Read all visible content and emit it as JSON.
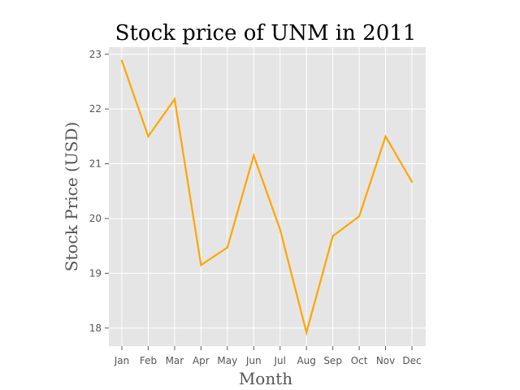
{
  "chart_data": {
    "type": "line",
    "title": "Stock price of UNM in 2011",
    "xlabel": "Month",
    "ylabel": "Stock Price (USD)",
    "categories": [
      "Jan",
      "Feb",
      "Mar",
      "Apr",
      "May",
      "Jun",
      "Jul",
      "Aug",
      "Sep",
      "Oct",
      "Nov",
      "Dec"
    ],
    "series": [
      {
        "values": [
          22.88,
          21.5,
          22.18,
          19.15,
          19.47,
          21.15,
          19.8,
          17.92,
          19.68,
          20.04,
          21.5,
          20.67
        ]
      }
    ],
    "yticks": [
      18,
      19,
      20,
      21,
      22,
      23
    ],
    "ylim": [
      17.67,
      23.13
    ],
    "grid": true,
    "legend": "none",
    "colors": {
      "line": "#ffa500",
      "plot_background": "#e5e5e5",
      "grid": "#ffffff"
    }
  }
}
